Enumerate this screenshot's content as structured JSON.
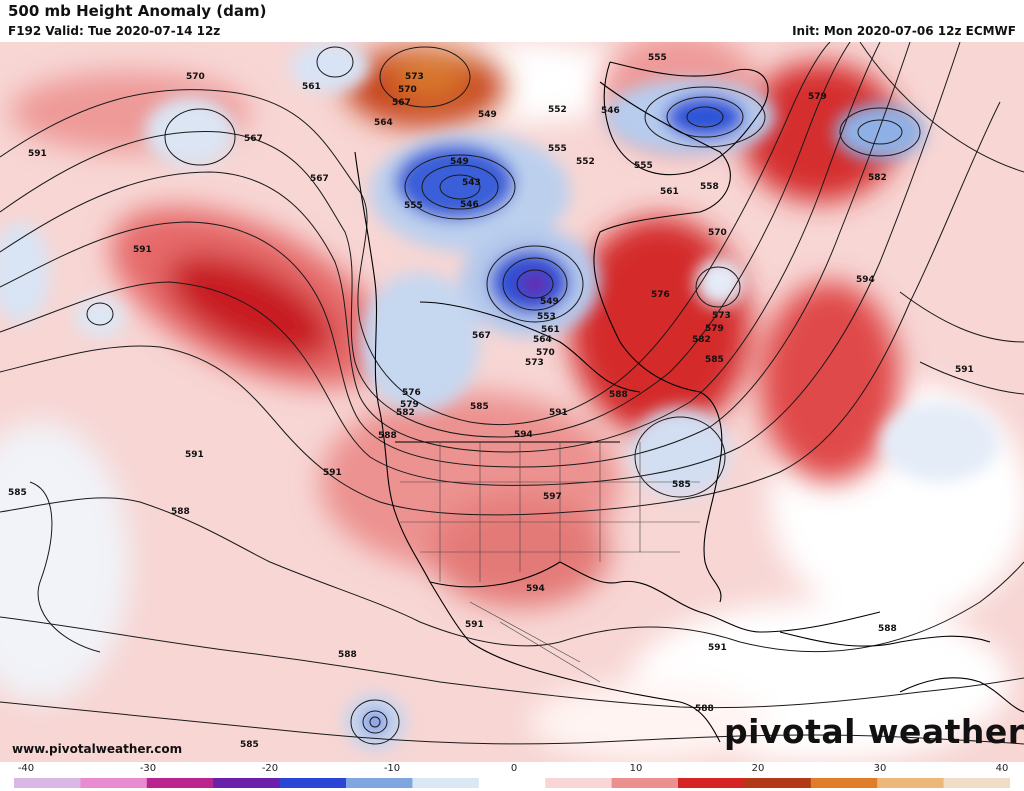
{
  "header": {
    "title": "500 mb Height Anomaly (dam)",
    "valid": "F192 Valid: Tue 2020-07-14 12z",
    "init": "Init: Mon 2020-07-06 12z ECMWF"
  },
  "footer": {
    "website": "www.pivotalweather.com",
    "brand": "pivotal weather"
  },
  "colorbar": {
    "tick_labels": [
      "-40",
      "-30",
      "-20",
      "-10",
      "0",
      "10",
      "20",
      "30",
      "40"
    ],
    "colors": [
      "#d9b8e6",
      "#e98ccf",
      "#b9248f",
      "#6a20a8",
      "#2a46d6",
      "#7fa6e0",
      "#dbe7f5",
      "#ffffff",
      "#f8d6d6",
      "#ec8f8f",
      "#d52424",
      "#b33a16",
      "#e07d2a",
      "#eeb77a",
      "#f1dcc7"
    ]
  },
  "map": {
    "contour_labels": [
      "570",
      "561",
      "573",
      "570",
      "567",
      "564",
      "549",
      "552",
      "555",
      "546",
      "555",
      "579",
      "591",
      "567",
      "567",
      "549",
      "543",
      "546",
      "555",
      "552",
      "555",
      "561",
      "558",
      "582",
      "591",
      "570",
      "594",
      "576",
      "573",
      "579",
      "582",
      "585",
      "549",
      "553",
      "561",
      "564",
      "570",
      "573",
      "567",
      "576",
      "579",
      "582",
      "585",
      "591",
      "588",
      "594",
      "588",
      "591",
      "591",
      "597",
      "585",
      "585",
      "588",
      "594",
      "591",
      "591",
      "588",
      "588",
      "588",
      "585",
      "591"
    ],
    "anomaly_centers": [
      {
        "name": "Hudson Bay low",
        "sign": "negative"
      },
      {
        "name": "Northern Quebec low",
        "sign": "negative"
      },
      {
        "name": "Greenland low",
        "sign": "negative"
      },
      {
        "name": "North Atlantic low",
        "sign": "negative"
      },
      {
        "name": "Gulf of Alaska ridge",
        "sign": "positive"
      },
      {
        "name": "Canadian Arctic ridge",
        "sign": "positive"
      },
      {
        "name": "Quebec ridge",
        "sign": "positive"
      },
      {
        "name": "Southwest US ridge",
        "sign": "positive"
      },
      {
        "name": "Southeast US trough",
        "sign": "negative"
      },
      {
        "name": "East Pacific low",
        "sign": "negative"
      }
    ]
  }
}
